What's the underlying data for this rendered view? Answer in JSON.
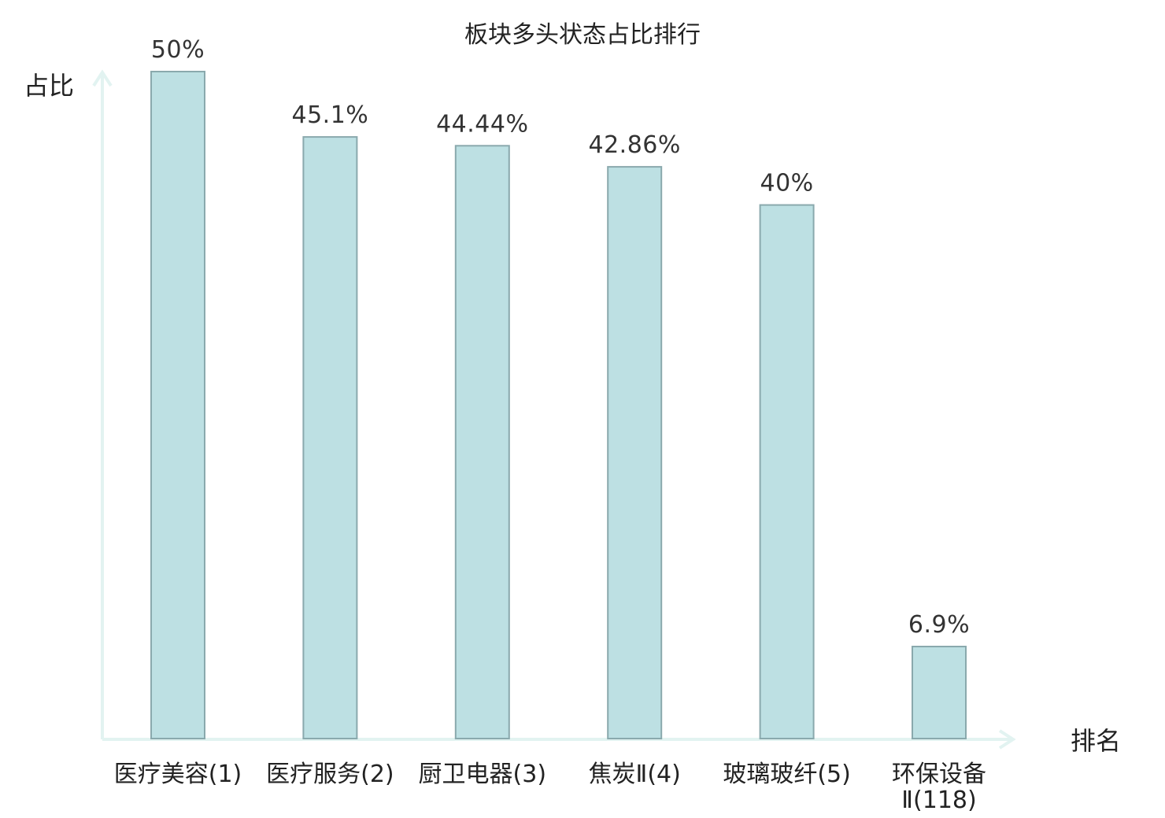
{
  "chart_data": {
    "type": "bar",
    "title": "板块多头状态占比排行",
    "xlabel": "排名",
    "ylabel": "占比",
    "ylim": [
      0,
      50
    ],
    "grid": false,
    "legend": "none",
    "categories": [
      [
        "医疗美容(1)"
      ],
      [
        "医疗服务(2)"
      ],
      [
        "厨卫电器(3)"
      ],
      [
        "焦炭Ⅱ(4)"
      ],
      [
        "玻璃玻纤(5)"
      ],
      [
        "环保设备",
        "Ⅱ(118)"
      ]
    ],
    "values": [
      50,
      45.1,
      44.44,
      42.86,
      40,
      6.9
    ],
    "value_labels": [
      "50%",
      "45.1%",
      "44.44%",
      "42.86%",
      "40%",
      "6.9%"
    ],
    "highlight_index": 5
  },
  "colors": {
    "bar_fill": "#bde0e3",
    "bar_stroke": "#8aa9ad",
    "axis": "#e2f3f1",
    "text": "#222222",
    "value_text": "#333333",
    "highlight_text": "#e01010"
  }
}
